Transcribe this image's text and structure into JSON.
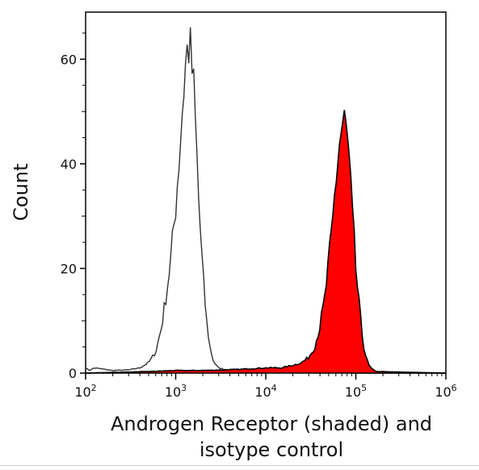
{
  "chart_data": {
    "type": "area",
    "xscale": "log",
    "xlim": [
      100,
      1000000
    ],
    "ylim": [
      0,
      69
    ],
    "grid": false,
    "legend": "none",
    "xlabel_lines": [
      "Androgen Receptor (shaded) and",
      "isotype control"
    ],
    "ylabel": "Count",
    "x_ticks": [
      {
        "value": 100,
        "base": "10",
        "exp": "2"
      },
      {
        "value": 1000,
        "base": "10",
        "exp": "3"
      },
      {
        "value": 10000,
        "base": "10",
        "exp": "4"
      },
      {
        "value": 100000,
        "base": "10",
        "exp": "5"
      },
      {
        "value": 1000000,
        "base": "10",
        "exp": "6"
      }
    ],
    "y_ticks": [
      0,
      20,
      40,
      60
    ],
    "colors": {
      "shaded_fill": "#ff0000",
      "line": "#000000",
      "isotype_line": "#333333"
    },
    "series": [
      {
        "style": "outline",
        "x": [
          100,
          110,
          125,
          150,
          200,
          300,
          400,
          500,
          600,
          700,
          800,
          900,
          1000,
          1100,
          1200,
          1300,
          1400,
          1500,
          1600,
          1700,
          1800,
          2000,
          2200,
          2400,
          2600,
          2800,
          3000,
          3500,
          5000,
          10000,
          30000,
          100000,
          1000000
        ],
        "y": [
          1,
          0.5,
          1,
          0.8,
          0.5,
          0.6,
          1,
          2,
          4,
          9,
          16,
          23,
          32,
          42,
          52,
          60,
          63,
          59,
          53,
          43,
          33,
          19,
          10,
          5,
          2.5,
          1.5,
          1,
          0.7,
          0.5,
          0.3,
          0.2,
          0,
          0
        ]
      },
      {
        "style": "filled",
        "x": [
          100,
          500,
          1000,
          2000,
          5000,
          10000,
          15000,
          20000,
          25000,
          30000,
          35000,
          40000,
          45000,
          50000,
          55000,
          60000,
          65000,
          70000,
          75000,
          80000,
          85000,
          90000,
          100000,
          110000,
          120000,
          130000,
          140000,
          150000,
          170000,
          1000000
        ],
        "y": [
          0,
          0.3,
          0.5,
          0.5,
          0.7,
          1,
          1,
          1.5,
          2,
          3,
          5,
          9,
          14,
          21,
          28,
          37,
          43,
          47,
          48,
          45,
          39,
          32,
          20,
          12,
          6,
          3,
          1.5,
          0.8,
          0.3,
          0
        ]
      }
    ]
  }
}
